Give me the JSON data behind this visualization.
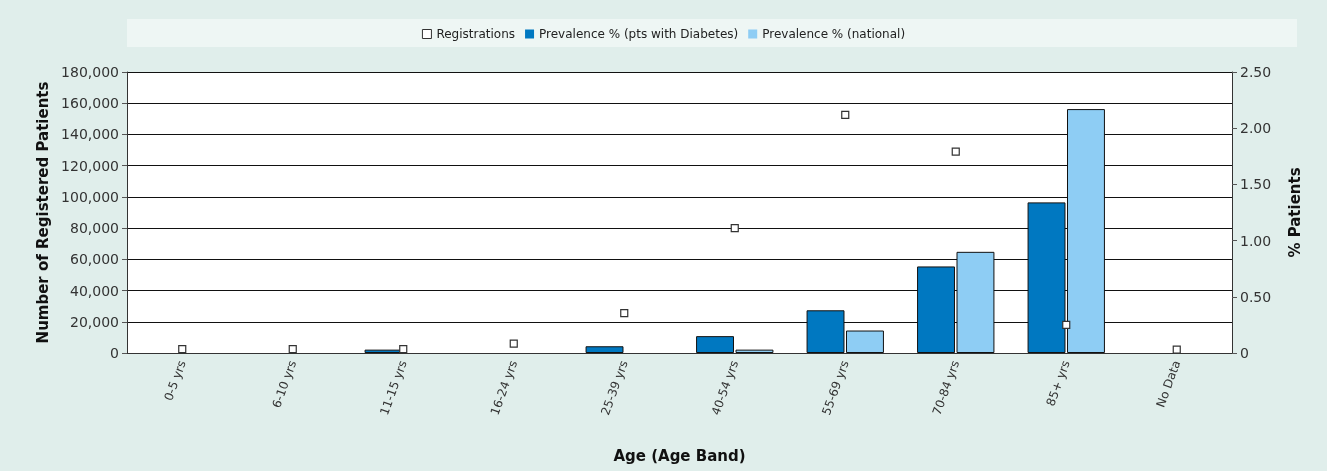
{
  "chart_data": {
    "type": "bar",
    "xlabel": "Age (Age Band)",
    "ylabel": "Number of Registered Patients",
    "y2label": "% Patients",
    "categories": [
      "0-5 yrs",
      "6-10 yrs",
      "11-15 yrs",
      "16-24 yrs",
      "25-39 yrs",
      "40-54 yrs",
      "55-69 yrs",
      "70-84 yrs",
      "85+ yrs",
      "No Data"
    ],
    "series": [
      {
        "name": "Registrations",
        "type": "scatter",
        "marker": "square",
        "color": "#ffffff",
        "x": [
          "0-5 yrs",
          "6-10 yrs",
          "11-15 yrs",
          "16-24 yrs",
          "25-39 yrs",
          "40-54 yrs",
          "55-69 yrs",
          "70-84 yrs",
          "85+ yrs",
          "No Data"
        ],
        "values": [
          2500,
          2500,
          2500,
          6000,
          25500,
          80000,
          152500,
          129000,
          18000,
          2200
        ]
      },
      {
        "name": "Prevalence % (pts with Diabetes)",
        "axis": "y2",
        "color": "#0078c1",
        "values": [
          null,
          null,
          0.03,
          null,
          0.06,
          0.15,
          0.38,
          0.77,
          1.34,
          null
        ]
      },
      {
        "name": "Prevalence % (national)",
        "axis": "y2",
        "color": "#8ecdf4",
        "values": [
          null,
          null,
          null,
          null,
          null,
          0.03,
          0.2,
          0.9,
          2.17,
          null
        ]
      }
    ],
    "ylim": [
      0,
      180000
    ],
    "yticks": [
      {
        "value": 0,
        "label": "0"
      },
      {
        "value": 20000,
        "label": "20,000"
      },
      {
        "value": 40000,
        "label": "40,000"
      },
      {
        "value": 60000,
        "label": "60,000"
      },
      {
        "value": 80000,
        "label": "80,000"
      },
      {
        "value": 100000,
        "label": "100,000"
      },
      {
        "value": 120000,
        "label": "120,000"
      },
      {
        "value": 140000,
        "label": "140,000"
      },
      {
        "value": 160000,
        "label": "160,000"
      },
      {
        "value": 180000,
        "label": "180,000"
      }
    ],
    "y2lim": [
      0,
      2.5
    ],
    "y2ticks": [
      0,
      {
        "value": 0.5,
        "label": "0.50"
      },
      {
        "value": 1,
        "label": "1.00"
      },
      {
        "value": 1.5,
        "label": "1.50"
      },
      {
        "value": 2,
        "label": "2.00"
      },
      {
        "value": 2.5,
        "label": "2.50"
      }
    ],
    "grid": "y",
    "legend": "top"
  }
}
